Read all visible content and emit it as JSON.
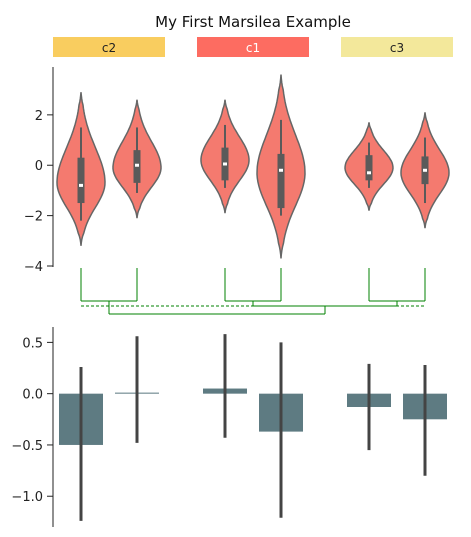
{
  "chart_data": [
    {
      "type": "violin",
      "title": "My First Marsilea Example",
      "ylim": [
        -4,
        3.9
      ],
      "yticks": [
        -4,
        -2,
        0,
        2
      ],
      "ytick_labels": [
        "−4",
        "−2",
        "0",
        "2"
      ],
      "violin_color": "#f47a6f",
      "violin_edge": "#666666",
      "groups": [
        {
          "label": "c2",
          "color": "#f9cd5f",
          "text_color": "#222222"
        },
        {
          "label": "c1",
          "color": "#fd6c61",
          "text_color": "#ffffff"
        },
        {
          "label": "c3",
          "color": "#f3e89b",
          "text_color": "#222222"
        }
      ],
      "violins": [
        {
          "group": "c2",
          "min": -3.2,
          "max": 2.9,
          "q1": -1.5,
          "median": -0.8,
          "q3": 0.3,
          "wlo": -2.2,
          "whi": 1.5,
          "mode": -0.7
        },
        {
          "group": "c2",
          "min": -2.1,
          "max": 2.6,
          "q1": -0.7,
          "median": 0.0,
          "q3": 0.6,
          "wlo": -1.1,
          "whi": 1.5,
          "mode": -0.1
        },
        {
          "group": "c1",
          "min": -1.9,
          "max": 2.6,
          "q1": -0.6,
          "median": 0.05,
          "q3": 0.7,
          "wlo": -0.9,
          "whi": 1.6,
          "mode": 0.2
        },
        {
          "group": "c1",
          "min": -3.7,
          "max": 3.6,
          "q1": -1.7,
          "median": -0.2,
          "q3": 0.45,
          "wlo": -2.0,
          "whi": 1.8,
          "mode": -0.3
        },
        {
          "group": "c3",
          "min": -1.8,
          "max": 1.7,
          "q1": -0.6,
          "median": -0.3,
          "q3": 0.4,
          "wlo": -0.9,
          "whi": 0.9,
          "mode": -0.1
        },
        {
          "group": "c3",
          "min": -2.5,
          "max": 2.1,
          "q1": -0.75,
          "median": -0.2,
          "q3": 0.35,
          "wlo": -1.5,
          "whi": 1.1,
          "mode": -0.3
        }
      ]
    },
    {
      "type": "dendrogram",
      "color": "#008000",
      "leaf_order": [
        "col-1",
        "col-2",
        "col-3",
        "col-4",
        "col-5",
        "col-6"
      ]
    },
    {
      "type": "bar",
      "ylim": [
        -1.3,
        0.65
      ],
      "yticks": [
        -1.0,
        -0.5,
        0.0,
        0.5
      ],
      "ytick_labels": [
        "−1.0",
        "−0.5",
        "0.0",
        "0.5"
      ],
      "bar_color": "#5e7b82",
      "errorbar_color": "#444444",
      "values": [
        -0.5,
        0.01,
        0.05,
        -0.37,
        -0.13,
        -0.25
      ],
      "ci_low": [
        -1.24,
        -0.48,
        -0.43,
        -1.21,
        -0.55,
        -0.8
      ],
      "ci_high": [
        0.26,
        0.56,
        0.58,
        0.5,
        0.29,
        0.28
      ]
    }
  ]
}
